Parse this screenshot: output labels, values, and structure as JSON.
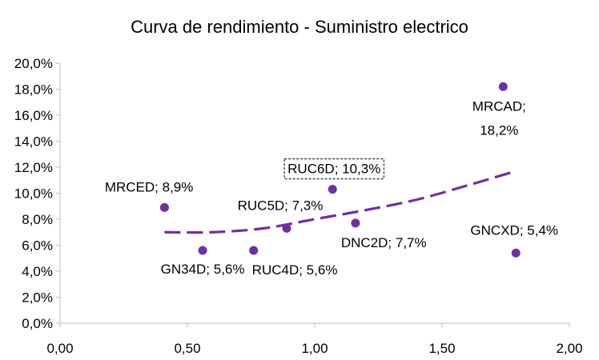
{
  "chart_data": {
    "type": "scatter",
    "title": "Curva de rendimiento - Suministro electrico",
    "xlabel": "",
    "ylabel": "",
    "xlim": [
      0,
      2
    ],
    "ylim": [
      0,
      0.2
    ],
    "x_ticks": [
      0,
      0.5,
      1,
      1.5,
      2
    ],
    "x_tick_labels": [
      "0,00",
      "0,50",
      "1,00",
      "1,50",
      "2,00"
    ],
    "y_ticks": [
      0,
      0.02,
      0.04,
      0.06,
      0.08,
      0.1,
      0.12,
      0.14,
      0.16,
      0.18,
      0.2
    ],
    "y_tick_labels": [
      "0,0%",
      "2,0%",
      "4,0%",
      "6,0%",
      "8,0%",
      "10,0%",
      "12,0%",
      "14,0%",
      "16,0%",
      "18,0%",
      "20,0%"
    ],
    "grid": false,
    "legend": "none",
    "point_color": "#7030a0",
    "trend_color": "#7030a0",
    "points": [
      {
        "name": "MRCED",
        "x": 0.41,
        "y": 0.089,
        "label": "MRCED; 8,9%",
        "label_pos": "upper-left"
      },
      {
        "name": "GN34D",
        "x": 0.56,
        "y": 0.056,
        "label": "GN34D; 5,6%",
        "label_pos": "below"
      },
      {
        "name": "RUC4D",
        "x": 0.76,
        "y": 0.056,
        "label": "RUC4D; 5,6%",
        "label_pos": "below-right"
      },
      {
        "name": "RUC5D",
        "x": 0.89,
        "y": 0.073,
        "label": "RUC5D; 7,3%",
        "label_pos": "above"
      },
      {
        "name": "RUC6D",
        "x": 1.07,
        "y": 0.103,
        "label": "RUC6D; 10,3%",
        "label_pos": "above-boxed"
      },
      {
        "name": "DNC2D",
        "x": 1.16,
        "y": 0.077,
        "label": "DNC2D; 7,7%",
        "label_pos": "below-right"
      },
      {
        "name": "MRCAD",
        "x": 1.74,
        "y": 0.182,
        "label_lines": [
          "MRCAD;",
          "18,2%"
        ],
        "label_pos": "below-two-line"
      },
      {
        "name": "GNCXD",
        "x": 1.79,
        "y": 0.054,
        "label": "GNCXD; 5,4%",
        "label_pos": "above"
      }
    ],
    "trendline": {
      "type": "polynomial",
      "style": "dashed",
      "x_start": 0.41,
      "x_end": 1.79,
      "points": [
        [
          0.41,
          0.07
        ],
        [
          0.6,
          0.07
        ],
        [
          0.8,
          0.073
        ],
        [
          1.0,
          0.08
        ],
        [
          1.2,
          0.087
        ],
        [
          1.4,
          0.095
        ],
        [
          1.6,
          0.106
        ],
        [
          1.79,
          0.117
        ]
      ]
    }
  }
}
